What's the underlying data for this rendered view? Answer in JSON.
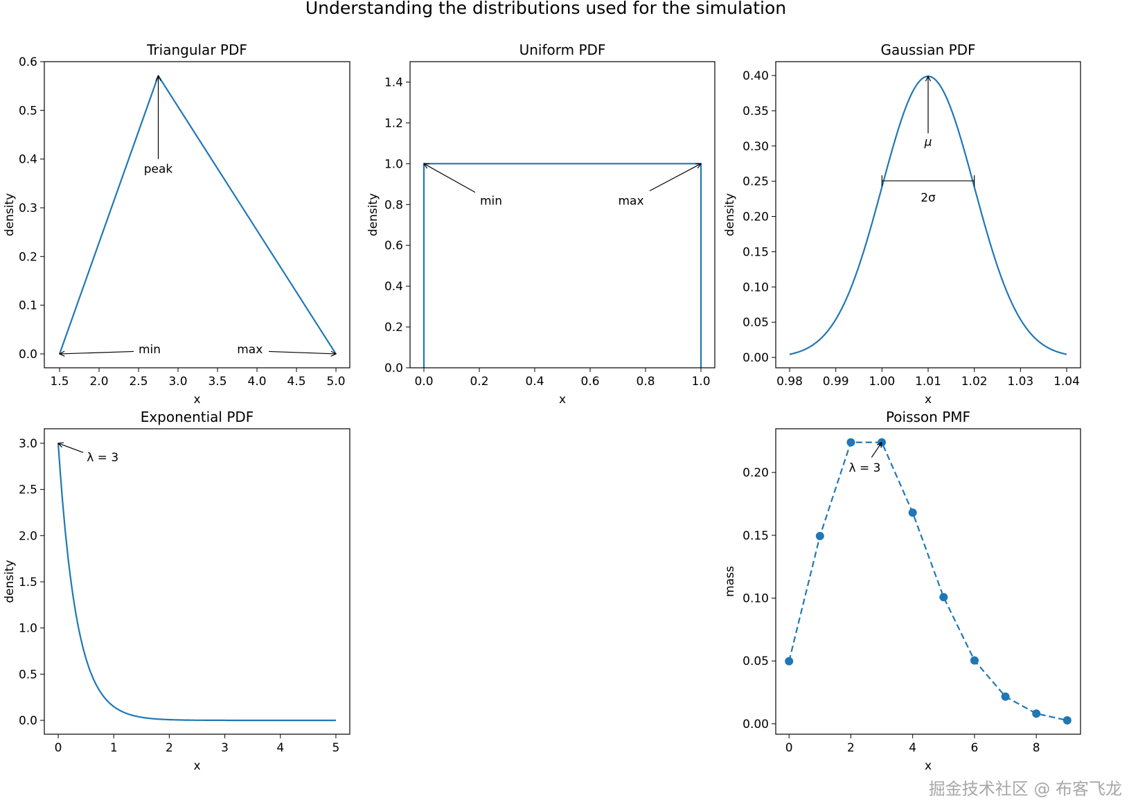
{
  "figure": {
    "suptitle": "Understanding the distributions used for the simulation",
    "watermark": "掘金技术社区 @ 布客飞龙",
    "line_color": "#1f77b4"
  },
  "chart_data": [
    {
      "type": "line",
      "title": "Triangular PDF",
      "xlabel": "x",
      "ylabel": "density",
      "xlim": [
        1.307,
        5.175
      ],
      "ylim": [
        -0.0285,
        0.6
      ],
      "xticks": [
        1.5,
        2.0,
        2.5,
        3.0,
        3.5,
        4.0,
        4.5,
        5.0
      ],
      "xtick_labels": [
        "1.5",
        "2.0",
        "2.5",
        "3.0",
        "3.5",
        "4.0",
        "4.5",
        "5.0"
      ],
      "yticks": [
        0.0,
        0.1,
        0.2,
        0.3,
        0.4,
        0.5,
        0.6
      ],
      "ytick_labels": [
        "0.0",
        "0.1",
        "0.2",
        "0.3",
        "0.4",
        "0.5",
        "0.6"
      ],
      "series": [
        {
          "name": "triangular",
          "x": [
            1.5,
            2.75,
            5.0
          ],
          "y": [
            0.0,
            0.571,
            0.0
          ],
          "style": "solid",
          "markers": false
        }
      ],
      "annotations": [
        {
          "text": "peak",
          "xy": [
            2.75,
            0.571
          ],
          "xytext": [
            2.75,
            0.38
          ],
          "tail": [
            2.75,
            0.4
          ],
          "kind": "arrow"
        },
        {
          "text": "min",
          "xy": [
            1.5,
            0.0
          ],
          "xytext": [
            2.64,
            0.01
          ],
          "tail": [
            2.44,
            0.005
          ],
          "kind": "arrow"
        },
        {
          "text": "max",
          "xy": [
            5.0,
            0.0
          ],
          "xytext": [
            3.91,
            0.01
          ],
          "tail": [
            4.15,
            0.005
          ],
          "kind": "arrow"
        }
      ]
    },
    {
      "type": "line",
      "title": "Uniform PDF",
      "xlabel": "x",
      "ylabel": "density",
      "xlim": [
        -0.05,
        1.05
      ],
      "ylim": [
        0.0,
        1.5
      ],
      "xticks": [
        0.0,
        0.2,
        0.4,
        0.6,
        0.8,
        1.0
      ],
      "xtick_labels": [
        "0.0",
        "0.2",
        "0.4",
        "0.6",
        "0.8",
        "1.0"
      ],
      "yticks": [
        0.0,
        0.2,
        0.4,
        0.6,
        0.8,
        1.0,
        1.2,
        1.4
      ],
      "ytick_labels": [
        "0.0",
        "0.2",
        "0.4",
        "0.6",
        "0.8",
        "1.0",
        "1.2",
        "1.4"
      ],
      "series": [
        {
          "name": "uniform",
          "x": [
            0.0,
            0.0,
            1.0,
            1.0
          ],
          "y": [
            0.0,
            1.0,
            1.0,
            0.0
          ],
          "style": "solid",
          "markers": false
        }
      ],
      "annotations": [
        {
          "text": "min",
          "xy": [
            0.0,
            1.0
          ],
          "xytext": [
            0.2425,
            0.82
          ],
          "tail": [
            0.185,
            0.86
          ],
          "kind": "arrow"
        },
        {
          "text": "max",
          "xy": [
            1.0,
            1.0
          ],
          "xytext": [
            0.7475,
            0.82
          ],
          "tail": [
            0.815,
            0.867
          ],
          "kind": "arrow"
        }
      ]
    },
    {
      "type": "line",
      "title": "Gaussian PDF",
      "xlabel": "x",
      "ylabel": "density",
      "xlim": [
        0.977,
        1.043
      ],
      "ylim": [
        -0.0147,
        0.4197
      ],
      "xticks": [
        0.98,
        0.99,
        1.0,
        1.01,
        1.02,
        1.03,
        1.04
      ],
      "xtick_labels": [
        "0.98",
        "0.99",
        "1.00",
        "1.01",
        "1.02",
        "1.03",
        "1.04"
      ],
      "yticks": [
        0.0,
        0.05,
        0.1,
        0.15,
        0.2,
        0.25,
        0.3,
        0.35,
        0.4
      ],
      "ytick_labels": [
        "0.00",
        "0.05",
        "0.10",
        "0.15",
        "0.20",
        "0.25",
        "0.30",
        "0.35",
        "0.40"
      ],
      "series": [
        {
          "name": "gaussian",
          "function": "gaussian",
          "mu": 1.01,
          "sigma": 0.01,
          "peak": 0.3989,
          "x_range": [
            0.98,
            1.04
          ],
          "style": "solid",
          "markers": false
        }
      ],
      "annotations": [
        {
          "text": "μ",
          "xy": [
            1.01,
            0.399
          ],
          "xytext": [
            1.01,
            0.306
          ],
          "tail": [
            1.01,
            0.318
          ],
          "kind": "arrow",
          "italic": true
        },
        {
          "text": "2σ",
          "xy": [
            1.0,
            0.2506
          ],
          "xy2": [
            1.02,
            0.2506
          ],
          "xytext": [
            1.01,
            0.227
          ],
          "kind": "bracket"
        }
      ]
    },
    {
      "type": "line",
      "title": "Exponential PDF",
      "xlabel": "x",
      "ylabel": "density",
      "xlim": [
        -0.25,
        5.25
      ],
      "ylim": [
        -0.15,
        3.157
      ],
      "xticks": [
        0,
        1,
        2,
        3,
        4,
        5
      ],
      "xtick_labels": [
        "0",
        "1",
        "2",
        "3",
        "4",
        "5"
      ],
      "yticks": [
        0.0,
        0.5,
        1.0,
        1.5,
        2.0,
        2.5,
        3.0
      ],
      "ytick_labels": [
        "0.0",
        "0.5",
        "1.0",
        "1.5",
        "2.0",
        "2.5",
        "3.0"
      ],
      "series": [
        {
          "name": "exponential",
          "function": "exponential",
          "lambda": 3,
          "x_range": [
            0,
            5
          ],
          "style": "solid",
          "markers": false
        }
      ],
      "annotations": [
        {
          "text": "λ = 3",
          "xy": [
            0.0,
            3.0
          ],
          "xytext": [
            0.8,
            2.85
          ],
          "tail": [
            0.45,
            2.9
          ],
          "kind": "arrow"
        }
      ]
    },
    {
      "type": "line",
      "title": "Poisson PMF",
      "xlabel": "x",
      "ylabel": "mass",
      "xlim": [
        -0.43,
        9.43
      ],
      "ylim": [
        -0.0083,
        0.2348
      ],
      "xticks": [
        0,
        2,
        4,
        6,
        8
      ],
      "xtick_labels": [
        "0",
        "2",
        "4",
        "6",
        "8"
      ],
      "yticks": [
        0.0,
        0.05,
        0.1,
        0.15,
        0.2
      ],
      "ytick_labels": [
        "0.00",
        "0.05",
        "0.10",
        "0.15",
        "0.20"
      ],
      "series": [
        {
          "name": "poisson",
          "x": [
            0,
            1,
            2,
            3,
            4,
            5,
            6,
            7,
            8,
            9
          ],
          "y": [
            0.0498,
            0.1494,
            0.224,
            0.224,
            0.168,
            0.1008,
            0.0504,
            0.0216,
            0.0081,
            0.0027
          ],
          "style": "dashed",
          "markers": true
        }
      ],
      "annotations": [
        {
          "text": "λ = 3",
          "xy": [
            3.0,
            0.224
          ],
          "xytext": [
            2.45,
            0.204
          ],
          "tail": [
            2.67,
            0.212
          ],
          "kind": "arrow"
        }
      ]
    }
  ]
}
